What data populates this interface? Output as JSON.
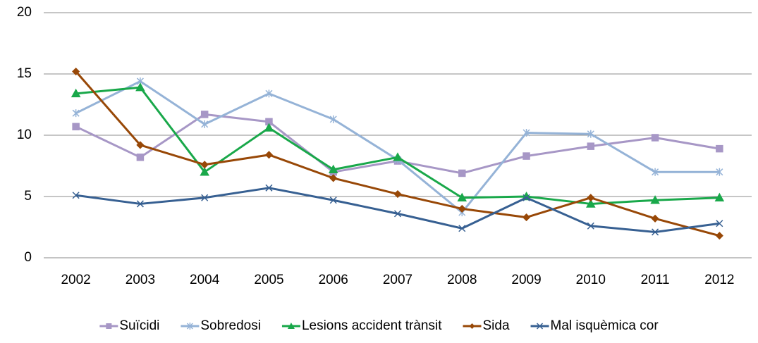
{
  "chart_data": {
    "type": "line",
    "categories": [
      "2002",
      "2003",
      "2004",
      "2005",
      "2006",
      "2007",
      "2008",
      "2009",
      "2010",
      "2011",
      "2012"
    ],
    "series": [
      {
        "name": "Suïcidi",
        "color": "#a797c6",
        "marker": "square",
        "values": [
          10.7,
          8.2,
          11.7,
          11.1,
          7.0,
          7.9,
          6.9,
          8.3,
          9.1,
          9.8,
          8.9
        ]
      },
      {
        "name": "Sobredosi",
        "color": "#95b3d7",
        "marker": "star",
        "values": [
          11.8,
          14.4,
          10.9,
          13.4,
          11.3,
          8.0,
          3.7,
          10.2,
          10.1,
          7.0,
          7.0
        ]
      },
      {
        "name": "Lesions accident trànsit",
        "color": "#19a84a",
        "marker": "triangle",
        "values": [
          13.4,
          13.9,
          7.0,
          10.6,
          7.2,
          8.2,
          4.9,
          5.0,
          4.4,
          4.7,
          4.9
        ]
      },
      {
        "name": "Sida",
        "color": "#984807",
        "marker": "diamond",
        "values": [
          15.2,
          9.2,
          7.6,
          8.4,
          6.5,
          5.2,
          4.0,
          3.3,
          4.9,
          3.2,
          1.8
        ]
      },
      {
        "name": "Mal isquèmica cor",
        "color": "#376092",
        "marker": "x",
        "values": [
          5.1,
          4.4,
          4.9,
          5.7,
          4.7,
          3.6,
          2.4,
          4.9,
          2.6,
          2.1,
          2.8
        ]
      }
    ],
    "ylim": [
      0,
      20
    ],
    "yticks": [
      0,
      5,
      10,
      15,
      20
    ],
    "grid": true,
    "legend": "bottom"
  }
}
